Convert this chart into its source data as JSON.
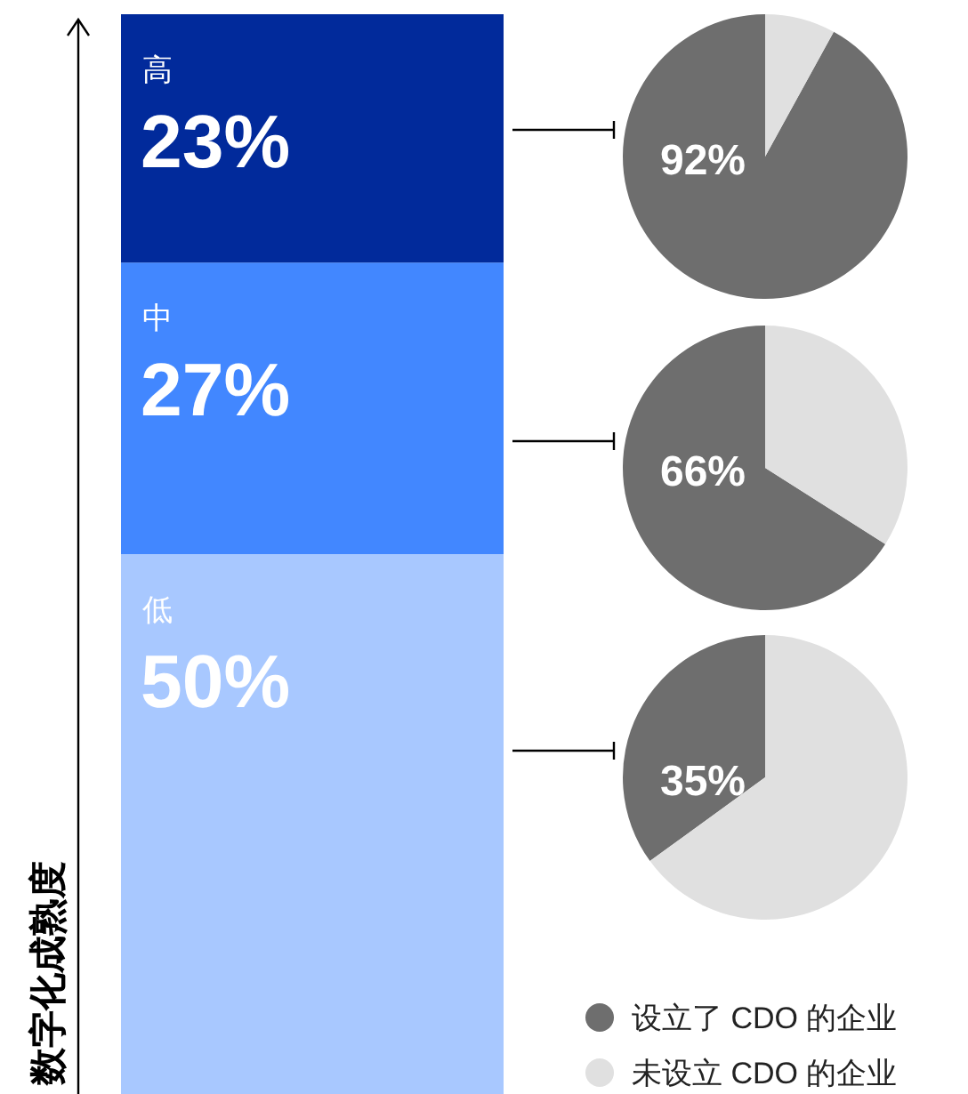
{
  "chart_data": [
    {
      "type": "bar",
      "stacked": true,
      "categories": [
        null
      ],
      "ylabel": "数字化成熟度",
      "series": [
        {
          "name": "低",
          "color": "#a8c8ff",
          "values": [
            50
          ],
          "value_labels": [
            "50%"
          ]
        },
        {
          "name": "中",
          "color": "#4287ff",
          "values": [
            27
          ],
          "value_labels": [
            "27%"
          ]
        },
        {
          "name": "高",
          "color": "#012a9b",
          "values": [
            23
          ],
          "value_labels": [
            "23%"
          ]
        }
      ]
    },
    {
      "type": "pie",
      "categories": [
        null,
        null
      ],
      "values": [
        92,
        8
      ],
      "colors": [
        "#6e6e6e",
        "#e0e0e0"
      ],
      "value_labels": [
        "92%",
        null
      ]
    },
    {
      "type": "pie",
      "categories": [
        null,
        null
      ],
      "values": [
        66,
        34
      ],
      "colors": [
        "#6e6e6e",
        "#e0e0e0"
      ],
      "value_labels": [
        "66%",
        null
      ]
    },
    {
      "type": "pie",
      "categories": [
        "设立了 CDO 的企业",
        "未设立 CDO 的企业"
      ],
      "values": [
        35,
        65
      ],
      "colors": [
        "#6e6e6e",
        "#e0e0e0"
      ],
      "value_labels": [
        "35%",
        null
      ],
      "legend": "bottom"
    }
  ]
}
